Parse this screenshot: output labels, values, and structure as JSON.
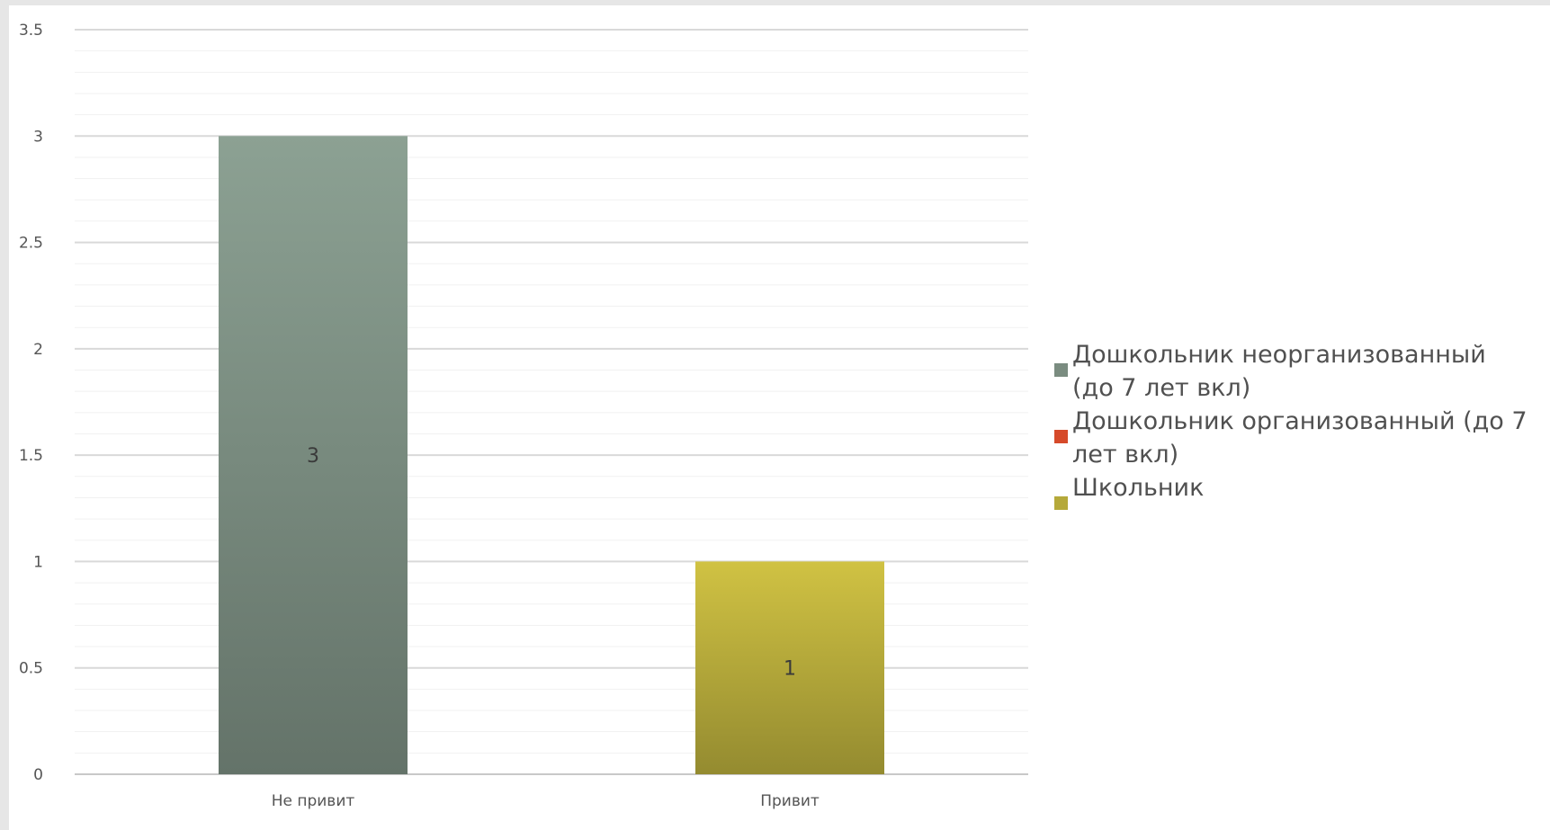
{
  "chart_data": {
    "type": "bar",
    "categories": [
      "Не привит",
      "Привит"
    ],
    "series": [
      {
        "name": "Дошкольник неорганизованный (до 7 лет вкл)",
        "values": [
          3,
          0
        ],
        "color": "#7a8c80"
      },
      {
        "name": "Дошкольник организованный (до 7 лет вкл)",
        "values": [
          0,
          0
        ],
        "color": "#d64a2a"
      },
      {
        "name": "Школьник",
        "values": [
          0,
          1
        ],
        "color": "#b5a93a"
      }
    ],
    "bars": [
      {
        "category": "Не привит",
        "series_index": 0,
        "value": 3,
        "label": "3"
      },
      {
        "category": "Привит",
        "series_index": 2,
        "value": 1,
        "label": "1"
      }
    ],
    "yticks": [
      "0",
      "0.5",
      "1",
      "1.5",
      "2",
      "2.5",
      "3",
      "3.5"
    ],
    "ylim": [
      0,
      3.5
    ],
    "grid": true,
    "legend_position": "right",
    "legend_lines": [
      [
        "Дошкольник неорганизованный",
        "(до 7 лет вкл)"
      ],
      [
        "Дошкольник организованный (до 7",
        "лет вкл)"
      ],
      [
        "Школьник"
      ]
    ]
  }
}
